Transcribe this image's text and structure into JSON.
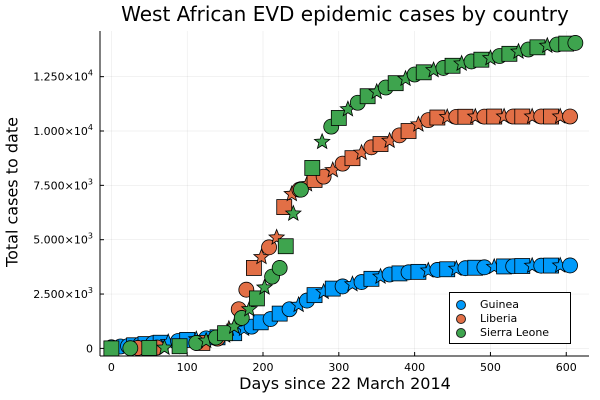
{
  "chart_data": {
    "type": "scatter",
    "title": "West African EVD epidemic cases by country",
    "xlabel": "Days since 22 March 2014",
    "ylabel": "Total cases to date",
    "xlim": [
      -15,
      630
    ],
    "ylim": [
      -350,
      14600
    ],
    "xticks": [
      0,
      100,
      200,
      300,
      400,
      500,
      600
    ],
    "xtick_labels": [
      "0",
      "100",
      "200",
      "300",
      "400",
      "500",
      "600"
    ],
    "yticks": [
      0,
      2500,
      5000,
      7500,
      10000,
      12500
    ],
    "ytick_labels": [
      {
        "mantissa": "0",
        "exponent": ""
      },
      {
        "mantissa": "2.500×10",
        "exponent": "3"
      },
      {
        "mantissa": "5.000×10",
        "exponent": "3"
      },
      {
        "mantissa": "7.500×10",
        "exponent": "3"
      },
      {
        "mantissa": "1.000×10",
        "exponent": "4"
      },
      {
        "mantissa": "1.250×10",
        "exponent": "4"
      }
    ],
    "grid": true,
    "legend_position": "bottom-right",
    "series": [
      {
        "name": "Guinea",
        "color": "#009AFA",
        "points": [
          [
            0,
            49,
            "circle"
          ],
          [
            12,
            86,
            "circle"
          ],
          [
            22,
            110,
            "circle"
          ],
          [
            30,
            143,
            "square"
          ],
          [
            38,
            180,
            "circle"
          ],
          [
            45,
            197,
            "square"
          ],
          [
            55,
            240,
            "circle"
          ],
          [
            65,
            260,
            "square"
          ],
          [
            75,
            290,
            "star"
          ],
          [
            88,
            340,
            "circle"
          ],
          [
            100,
            390,
            "square"
          ],
          [
            112,
            420,
            "star"
          ],
          [
            125,
            460,
            "circle"
          ],
          [
            140,
            510,
            "square"
          ],
          [
            150,
            590,
            "star"
          ],
          [
            162,
            700,
            "square"
          ],
          [
            175,
            900,
            "star"
          ],
          [
            185,
            1000,
            "circle"
          ],
          [
            197,
            1200,
            "square"
          ],
          [
            210,
            1350,
            "circle"
          ],
          [
            222,
            1600,
            "square"
          ],
          [
            235,
            1800,
            "circle"
          ],
          [
            247,
            2000,
            "star"
          ],
          [
            258,
            2200,
            "circle"
          ],
          [
            268,
            2450,
            "square"
          ],
          [
            280,
            2600,
            "star"
          ],
          [
            292,
            2750,
            "square"
          ],
          [
            305,
            2850,
            "circle"
          ],
          [
            318,
            2950,
            "star"
          ],
          [
            330,
            3050,
            "circle"
          ],
          [
            343,
            3200,
            "square"
          ],
          [
            355,
            3300,
            "star"
          ],
          [
            367,
            3400,
            "circle"
          ],
          [
            380,
            3450,
            "square"
          ],
          [
            392,
            3500,
            "circle"
          ],
          [
            405,
            3520,
            "square"
          ],
          [
            418,
            3580,
            "star"
          ],
          [
            430,
            3610,
            "circle"
          ],
          [
            443,
            3640,
            "square"
          ],
          [
            455,
            3660,
            "star"
          ],
          [
            467,
            3690,
            "circle"
          ],
          [
            480,
            3710,
            "square"
          ],
          [
            492,
            3730,
            "circle"
          ],
          [
            505,
            3750,
            "star"
          ],
          [
            518,
            3770,
            "square"
          ],
          [
            530,
            3780,
            "circle"
          ],
          [
            542,
            3790,
            "square"
          ],
          [
            555,
            3800,
            "star"
          ],
          [
            567,
            3805,
            "circle"
          ],
          [
            580,
            3810,
            "square"
          ],
          [
            592,
            3812,
            "star"
          ],
          [
            605,
            3815,
            "circle"
          ]
        ]
      },
      {
        "name": "Liberia",
        "color": "#E26F46",
        "points": [
          [
            35,
            20,
            "circle"
          ],
          [
            60,
            40,
            "circle"
          ],
          [
            90,
            100,
            "circle"
          ],
          [
            120,
            250,
            "square"
          ],
          [
            140,
            450,
            "circle"
          ],
          [
            155,
            900,
            "star"
          ],
          [
            168,
            1800,
            "circle"
          ],
          [
            178,
            2700,
            "circle"
          ],
          [
            188,
            3700,
            "square"
          ],
          [
            198,
            4200,
            "star"
          ],
          [
            208,
            4650,
            "circle"
          ],
          [
            218,
            5100,
            "star"
          ],
          [
            228,
            6500,
            "square"
          ],
          [
            238,
            7100,
            "star"
          ],
          [
            248,
            7300,
            "circle"
          ],
          [
            258,
            7550,
            "star"
          ],
          [
            268,
            7750,
            "square"
          ],
          [
            280,
            7900,
            "circle"
          ],
          [
            292,
            8200,
            "star"
          ],
          [
            305,
            8500,
            "circle"
          ],
          [
            318,
            8750,
            "square"
          ],
          [
            330,
            9000,
            "star"
          ],
          [
            343,
            9250,
            "circle"
          ],
          [
            355,
            9400,
            "square"
          ],
          [
            367,
            9550,
            "star"
          ],
          [
            380,
            9800,
            "circle"
          ],
          [
            392,
            10000,
            "square"
          ],
          [
            405,
            10300,
            "star"
          ],
          [
            418,
            10500,
            "circle"
          ],
          [
            430,
            10620,
            "square"
          ],
          [
            443,
            10640,
            "star"
          ],
          [
            455,
            10650,
            "circle"
          ],
          [
            467,
            10655,
            "square"
          ],
          [
            480,
            10660,
            "star"
          ],
          [
            492,
            10662,
            "circle"
          ],
          [
            505,
            10665,
            "square"
          ],
          [
            518,
            10666,
            "star"
          ],
          [
            530,
            10666,
            "circle"
          ],
          [
            542,
            10666,
            "square"
          ],
          [
            555,
            10666,
            "star"
          ],
          [
            567,
            10666,
            "circle"
          ],
          [
            580,
            10666,
            "square"
          ],
          [
            592,
            10666,
            "star"
          ],
          [
            605,
            10666,
            "circle"
          ]
        ]
      },
      {
        "name": "Sierra Leone",
        "color": "#3EA44E",
        "points": [
          [
            0,
            0,
            "square"
          ],
          [
            25,
            10,
            "circle"
          ],
          [
            50,
            20,
            "square"
          ],
          [
            70,
            30,
            "star"
          ],
          [
            90,
            100,
            "square"
          ],
          [
            112,
            250,
            "circle"
          ],
          [
            125,
            350,
            "star"
          ],
          [
            138,
            500,
            "circle"
          ],
          [
            150,
            700,
            "square"
          ],
          [
            162,
            1000,
            "star"
          ],
          [
            172,
            1400,
            "circle"
          ],
          [
            182,
            1800,
            "star"
          ],
          [
            192,
            2300,
            "square"
          ],
          [
            202,
            2800,
            "star"
          ],
          [
            212,
            3300,
            "circle"
          ],
          [
            222,
            3700,
            "circle"
          ],
          [
            230,
            4700,
            "square"
          ],
          [
            240,
            6200,
            "star"
          ],
          [
            250,
            7300,
            "circle"
          ],
          [
            265,
            8300,
            "square"
          ],
          [
            278,
            9500,
            "star"
          ],
          [
            290,
            10200,
            "circle"
          ],
          [
            300,
            10600,
            "square"
          ],
          [
            312,
            11000,
            "star"
          ],
          [
            325,
            11300,
            "circle"
          ],
          [
            338,
            11600,
            "square"
          ],
          [
            350,
            11800,
            "star"
          ],
          [
            362,
            12000,
            "circle"
          ],
          [
            375,
            12200,
            "square"
          ],
          [
            388,
            12400,
            "star"
          ],
          [
            400,
            12600,
            "circle"
          ],
          [
            412,
            12700,
            "square"
          ],
          [
            425,
            12800,
            "star"
          ],
          [
            438,
            12900,
            "circle"
          ],
          [
            450,
            13000,
            "square"
          ],
          [
            462,
            13100,
            "star"
          ],
          [
            475,
            13200,
            "circle"
          ],
          [
            488,
            13280,
            "square"
          ],
          [
            500,
            13350,
            "star"
          ],
          [
            512,
            13450,
            "circle"
          ],
          [
            525,
            13550,
            "square"
          ],
          [
            537,
            13650,
            "star"
          ],
          [
            550,
            13750,
            "circle"
          ],
          [
            562,
            13850,
            "square"
          ],
          [
            575,
            13920,
            "star"
          ],
          [
            588,
            13980,
            "circle"
          ],
          [
            600,
            14020,
            "square"
          ],
          [
            612,
            14050,
            "circle"
          ]
        ]
      }
    ]
  }
}
